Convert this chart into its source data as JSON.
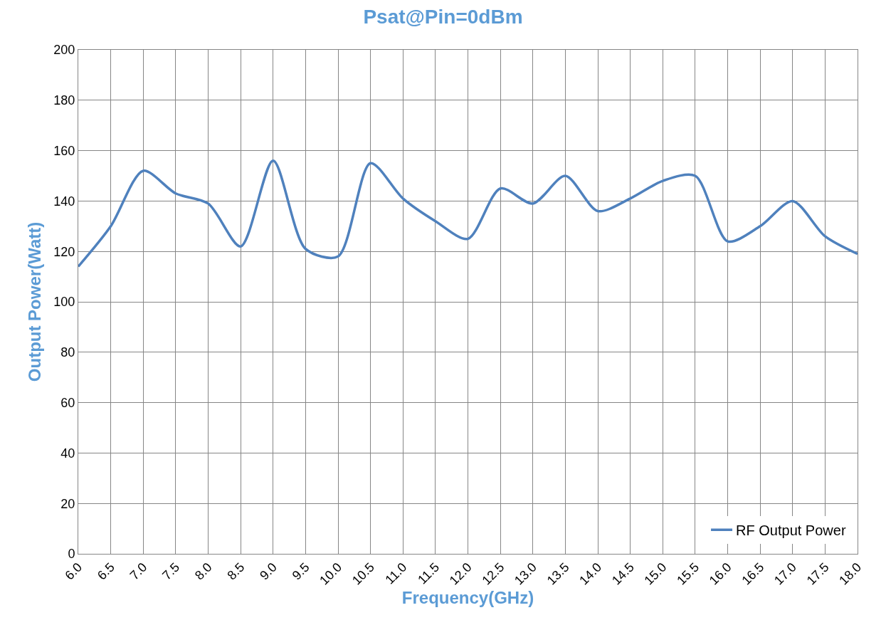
{
  "chart_data": {
    "type": "line",
    "title": "Psat@Pin=0dBm",
    "xlabel": "Frequency(GHz)",
    "ylabel": "Output Power(Watt)",
    "x": [
      6.0,
      6.5,
      7.0,
      7.5,
      8.0,
      8.5,
      9.0,
      9.5,
      10.0,
      10.5,
      11.0,
      11.5,
      12.0,
      12.5,
      13.0,
      13.5,
      14.0,
      14.5,
      15.0,
      15.5,
      16.0,
      16.5,
      17.0,
      17.5,
      18.0
    ],
    "series": [
      {
        "name": "RF Output Power",
        "color": "#4f81bd",
        "values": [
          114,
          130,
          152,
          143,
          139,
          122,
          156,
          121,
          118,
          155,
          141,
          132,
          125,
          145,
          139,
          150,
          136,
          141,
          148,
          150,
          124,
          130,
          140,
          126,
          119
        ]
      }
    ],
    "xlim": [
      6.0,
      18.0
    ],
    "xticks": [
      {
        "value": 6.0,
        "label": "6.0"
      },
      {
        "value": 6.5,
        "label": "6.5"
      },
      {
        "value": 7.0,
        "label": "7.0"
      },
      {
        "value": 7.5,
        "label": "7.5"
      },
      {
        "value": 8.0,
        "label": "8.0"
      },
      {
        "value": 8.5,
        "label": "8.5"
      },
      {
        "value": 9.0,
        "label": "9.0"
      },
      {
        "value": 9.5,
        "label": "9.5"
      },
      {
        "value": 10.0,
        "label": "10.0"
      },
      {
        "value": 10.5,
        "label": "10.5"
      },
      {
        "value": 11.0,
        "label": "11.0"
      },
      {
        "value": 11.5,
        "label": "11.5"
      },
      {
        "value": 12.0,
        "label": "12.0"
      },
      {
        "value": 12.5,
        "label": "12.5"
      },
      {
        "value": 13.0,
        "label": "13.0"
      },
      {
        "value": 13.5,
        "label": "13.5"
      },
      {
        "value": 14.0,
        "label": "14.0"
      },
      {
        "value": 14.5,
        "label": "14.5"
      },
      {
        "value": 15.0,
        "label": "15.0"
      },
      {
        "value": 15.5,
        "label": "15.5"
      },
      {
        "value": 16.0,
        "label": "16.0"
      },
      {
        "value": 16.5,
        "label": "16.5"
      },
      {
        "value": 17.0,
        "label": "17.0"
      },
      {
        "value": 17.5,
        "label": "17.5"
      },
      {
        "value": 18.0,
        "label": "18.0"
      }
    ],
    "ylim": [
      0,
      200
    ],
    "yticks": [
      0,
      20,
      40,
      60,
      80,
      100,
      120,
      140,
      160,
      180,
      200
    ],
    "grid": true,
    "legend": "bottom right",
    "line_style": "solid",
    "marker": "none"
  }
}
